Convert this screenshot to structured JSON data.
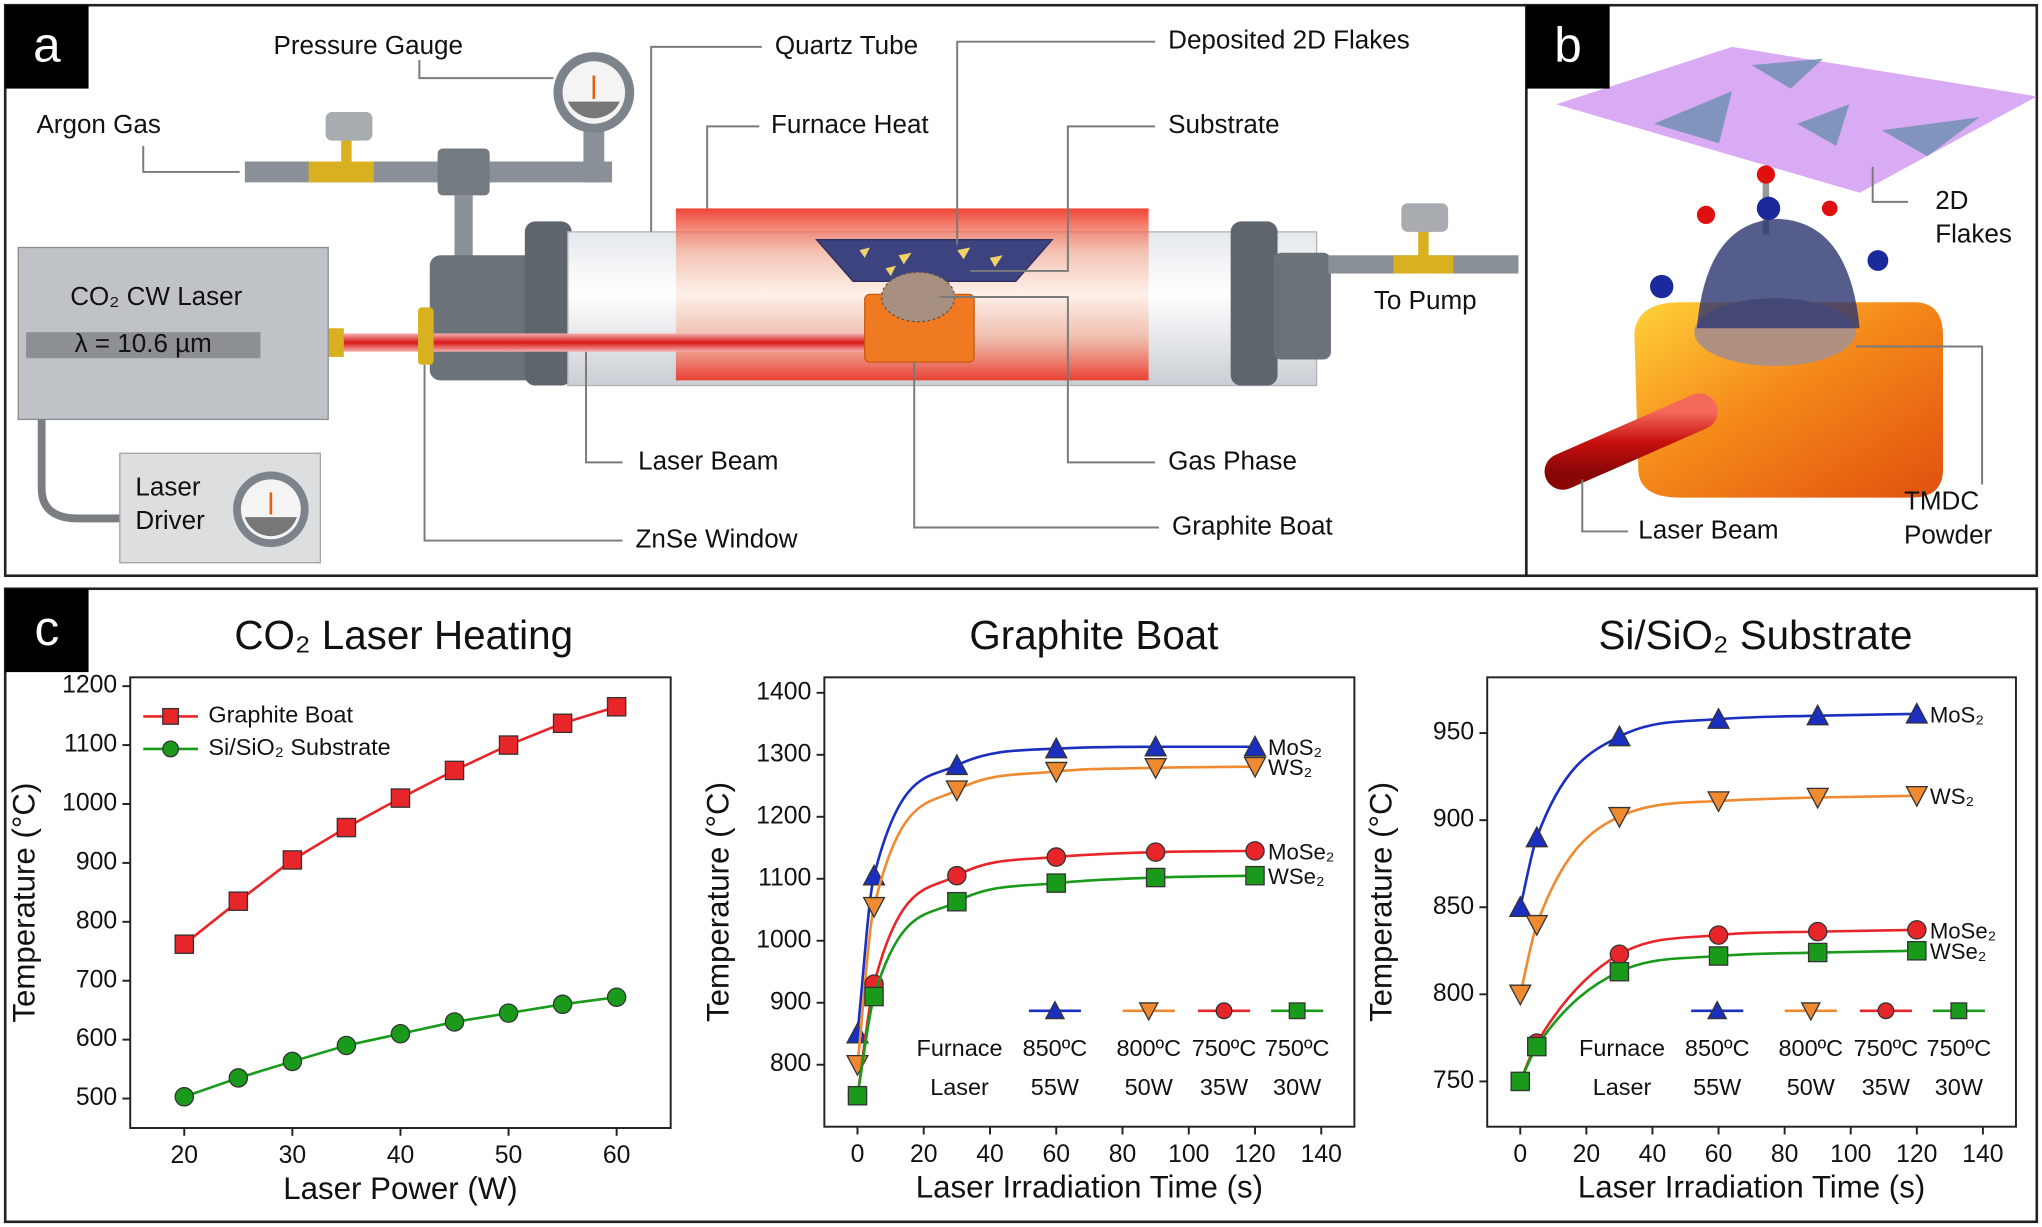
{
  "panel_a": {
    "label": "a",
    "pressure_gauge": "Pressure Gauge",
    "quartz_tube": "Quartz Tube",
    "deposited_flakes": "Deposited 2D Flakes",
    "argon_gas": "Argon Gas",
    "furnace_heat": "Furnace Heat",
    "substrate": "Substrate",
    "laser": "CO₂ CW Laser",
    "wavelength": "λ = 10.6 µm",
    "to_pump": "To Pump",
    "laser_driver": [
      "Laser",
      "Driver"
    ],
    "laser_beam": "Laser Beam",
    "gas_phase": "Gas Phase",
    "znse_window": "ZnSe Window",
    "graphite_boat": "Graphite Boat"
  },
  "panel_b": {
    "label": "b",
    "flakes": [
      "2D",
      "Flakes"
    ],
    "laser_beam": "Laser Beam",
    "powder": [
      "TMDC",
      "Powder"
    ]
  },
  "panel_c": {
    "label": "c"
  },
  "chart_data": [
    {
      "type": "line",
      "title": "CO₂ Laser Heating",
      "xlabel": "Laser Power (W)",
      "ylabel": "Temperature (°C)",
      "x": [
        20,
        25,
        30,
        35,
        40,
        45,
        50,
        55,
        60
      ],
      "xlim": [
        15,
        65
      ],
      "xticks": [
        20,
        30,
        40,
        50,
        60
      ],
      "ylim": [
        450,
        1215
      ],
      "yticks": [
        500,
        600,
        700,
        800,
        900,
        1000,
        1100,
        1200
      ],
      "smooth": false,
      "legend": "upper left",
      "series": [
        {
          "name": "Graphite Boat",
          "color": "#e8262a",
          "marker": "square",
          "values": [
            762,
            835,
            905,
            960,
            1010,
            1057,
            1100,
            1137,
            1165
          ]
        },
        {
          "name": "Si/SiO₂ Substrate",
          "color": "#1a9a1a",
          "marker": "circle",
          "values": [
            503,
            535,
            563,
            590,
            610,
            630,
            645,
            660,
            672
          ]
        }
      ]
    },
    {
      "type": "line",
      "title": "Graphite Boat",
      "xlabel": "Laser Irradiation Time (s)",
      "ylabel": "Temperature (°C)",
      "x": [
        0,
        5,
        30,
        60,
        90,
        120
      ],
      "xlim": [
        -10,
        150
      ],
      "xticks": [
        0,
        20,
        40,
        60,
        80,
        100,
        120,
        140
      ],
      "ylim": [
        700,
        1425
      ],
      "yticks": [
        800,
        900,
        1000,
        1100,
        1200,
        1300,
        1400
      ],
      "smooth": true,
      "series_labels": "end",
      "legend": "lower right",
      "legend_rows": [
        "Furnace",
        "Laser"
      ],
      "series": [
        {
          "name": "MoS₂",
          "color": "#1a2fc0",
          "marker": "triangle-up",
          "furnace": "850ºC",
          "laser": "55W",
          "values": [
            850,
            1105,
            1283,
            1310,
            1313,
            1313
          ]
        },
        {
          "name": "WS₂",
          "color": "#f08a30",
          "marker": "triangle-down",
          "furnace": "800ºC",
          "laser": "50W",
          "values": [
            800,
            1055,
            1243,
            1273,
            1279,
            1281
          ]
        },
        {
          "name": "MoSe₂",
          "color": "#e8262a",
          "marker": "circle",
          "furnace": "750ºC",
          "laser": "35W",
          "values": [
            750,
            930,
            1105,
            1135,
            1143,
            1145
          ]
        },
        {
          "name": "WSe₂",
          "color": "#1a9a1a",
          "marker": "square",
          "furnace": "750ºC",
          "laser": "30W",
          "values": [
            750,
            910,
            1063,
            1093,
            1102,
            1105
          ]
        }
      ]
    },
    {
      "type": "line",
      "title": "Si/SiO₂ Substrate",
      "xlabel": "Laser Irradiation Time (s)",
      "ylabel": "Temperature (°C)",
      "x": [
        0,
        5,
        30,
        60,
        90,
        120
      ],
      "xlim": [
        -10,
        150
      ],
      "xticks": [
        0,
        20,
        40,
        60,
        80,
        100,
        120,
        140
      ],
      "ylim": [
        724,
        982
      ],
      "yticks": [
        750,
        800,
        850,
        900,
        950
      ],
      "smooth": true,
      "series_labels": "end",
      "legend": "lower right",
      "legend_rows": [
        "Furnace",
        "Laser"
      ],
      "series": [
        {
          "name": "MoS₂",
          "color": "#1a2fc0",
          "marker": "triangle-up",
          "furnace": "850ºC",
          "laser": "55W",
          "values": [
            850,
            890,
            948,
            958,
            960,
            961
          ]
        },
        {
          "name": "WS₂",
          "color": "#f08a30",
          "marker": "triangle-down",
          "furnace": "800ºC",
          "laser": "50W",
          "values": [
            800,
            840,
            902,
            911,
            913,
            914
          ]
        },
        {
          "name": "MoSe₂",
          "color": "#e8262a",
          "marker": "circle",
          "furnace": "750ºC",
          "laser": "35W",
          "values": [
            750,
            772,
            823,
            834,
            836,
            837
          ]
        },
        {
          "name": "WSe₂",
          "color": "#1a9a1a",
          "marker": "square",
          "furnace": "750ºC",
          "laser": "30W",
          "values": [
            750,
            770,
            813,
            822,
            824,
            825
          ]
        }
      ]
    }
  ]
}
